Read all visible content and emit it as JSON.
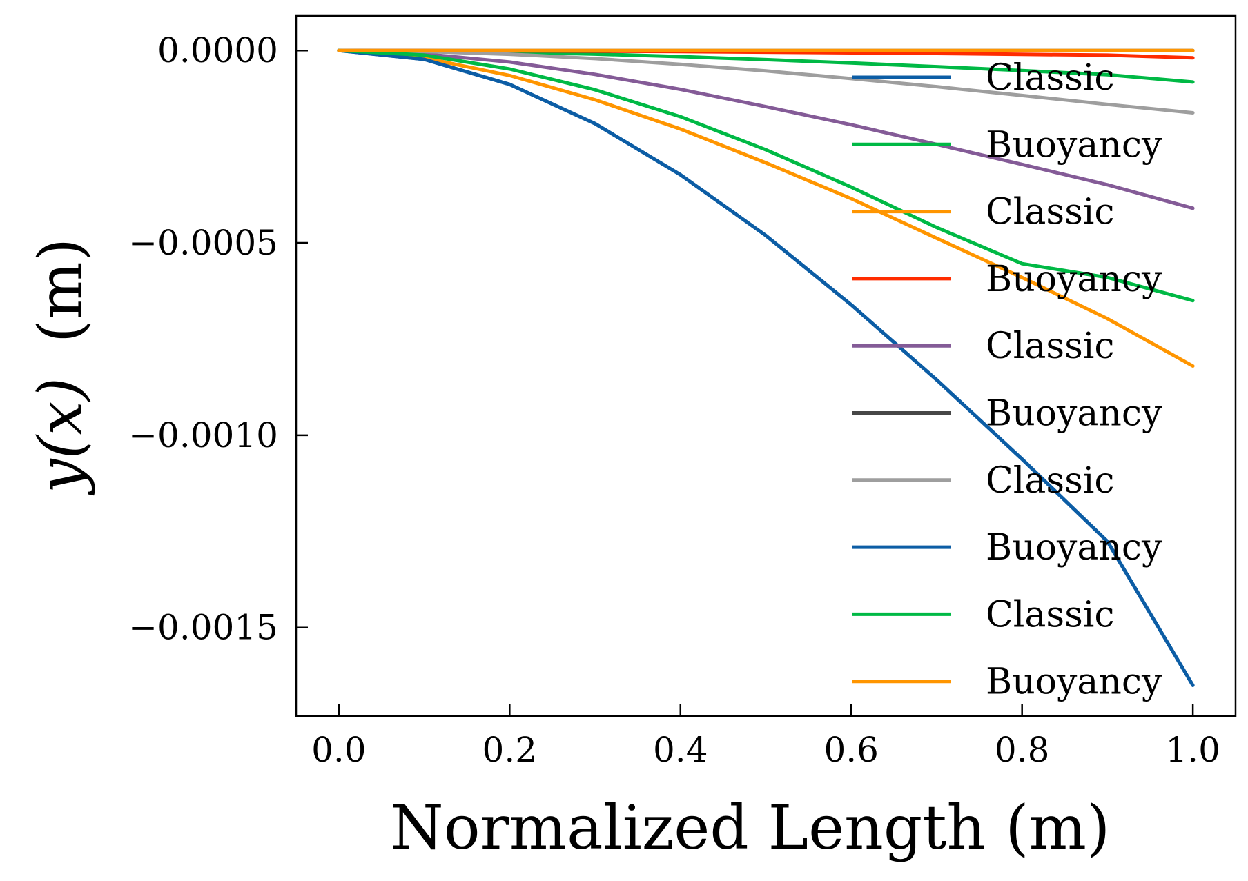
{
  "chart_data": {
    "type": "line",
    "title": "",
    "xlabel": "Normalized Length (m)",
    "ylabel_main": "y(x)",
    "ylabel_unit": "(m)",
    "xlim": [
      -0.05,
      1.05
    ],
    "ylim": [
      -0.00173,
      9e-05
    ],
    "xticks": [
      0.0,
      0.2,
      0.4,
      0.6,
      0.8,
      1.0
    ],
    "xtick_labels": [
      "0.0",
      "0.2",
      "0.4",
      "0.6",
      "0.8",
      "1.0"
    ],
    "yticks": [
      0.0,
      -0.0005,
      -0.001,
      -0.0015
    ],
    "ytick_labels": [
      "0.0000",
      "−0.0005",
      "−0.0010",
      "−0.0015"
    ],
    "grid": false,
    "legend_position": "upper-right",
    "x": [
      0.0,
      0.1,
      0.2,
      0.3,
      0.4,
      0.5,
      0.6,
      0.7,
      0.8,
      0.9,
      1.0
    ],
    "series": [
      {
        "name": "Classic",
        "color": "#0c5da5",
        "values": [
          0,
          -2.3e-05,
          -8.8e-05,
          -0.00019,
          -0.000323,
          -0.000481,
          -0.000661,
          -0.000856,
          -0.001062,
          -0.001276,
          -0.00165
        ]
      },
      {
        "name": "Buoyancy",
        "color": "#00b945",
        "values": [
          0,
          -1.1e-06,
          -4.3e-06,
          -9.3e-06,
          -1.58e-05,
          -2.36e-05,
          -3.24e-05,
          -4.2e-05,
          -5.2e-05,
          -6.3e-05,
          -8.2e-05
        ]
      },
      {
        "name": "Classic",
        "color": "#ff9500",
        "values": [
          0,
          -1.9e-05,
          -6.5e-05,
          -0.000128,
          -0.000204,
          -0.000292,
          -0.000385,
          -0.000488,
          -0.00059,
          -0.000697,
          -0.00082
        ]
      },
      {
        "name": "Buoyancy",
        "color": "#ff2c00",
        "values": [
          0,
          -2e-07,
          -8e-07,
          -1.7e-06,
          -2.9e-06,
          -4.3e-06,
          -5.9e-06,
          -7.8e-06,
          -1e-05,
          -1.2e-05,
          -1.9e-05
        ]
      },
      {
        "name": "Classic",
        "color": "#845b97",
        "values": [
          0,
          -9e-06,
          -3e-05,
          -6.2e-05,
          -0.000101,
          -0.000146,
          -0.000193,
          -0.000244,
          -0.000296,
          -0.000349,
          -0.00041
        ]
      },
      {
        "name": "Buoyancy",
        "color": "#474747",
        "values": [
          0,
          0,
          0,
          0,
          0,
          0,
          0,
          0,
          0,
          0,
          0
        ]
      },
      {
        "name": "Classic",
        "color": "#9e9e9e",
        "values": [
          0,
          -2.6e-06,
          -9.7e-06,
          -2.1e-05,
          -3.6e-05,
          -5.3e-05,
          -7.3e-05,
          -9.4e-05,
          -0.000117,
          -0.00014,
          -0.000162
        ]
      },
      {
        "name": "Buoyancy",
        "color": "#0c5da5",
        "values": [
          0,
          -2.3e-05,
          -8.8e-05,
          -0.00019,
          -0.000323,
          -0.000481,
          -0.000661,
          -0.000856,
          -0.001062,
          -0.001276,
          -0.00165
        ]
      },
      {
        "name": "Classic",
        "color": "#00b945",
        "values": [
          0,
          -1.2e-05,
          -4.8e-05,
          -0.000102,
          -0.000172,
          -0.000258,
          -0.000355,
          -0.00046,
          -0.000554,
          -0.00059,
          -0.00065
        ]
      },
      {
        "name": "Buoyancy",
        "color": "#ff9500",
        "values": [
          0,
          0,
          0,
          0,
          0,
          0,
          0,
          0,
          0,
          0,
          0
        ]
      }
    ]
  }
}
